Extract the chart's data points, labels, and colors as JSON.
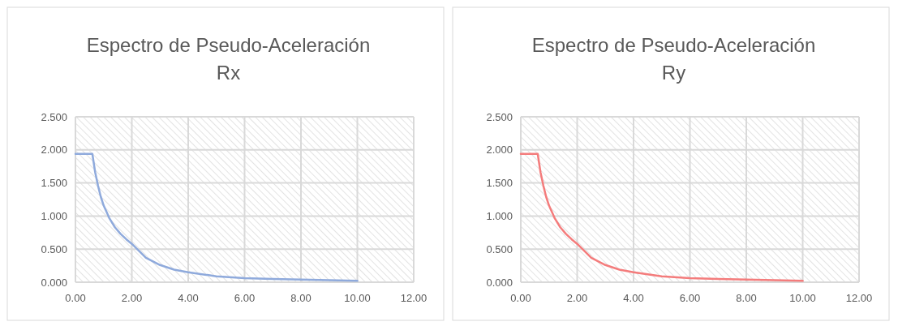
{
  "chart_data": [
    {
      "type": "line",
      "title": "Espectro de Pseudo-Aceleración Rx",
      "x": [
        0,
        0.6,
        0.7,
        0.8,
        0.9,
        1.0,
        1.2,
        1.4,
        1.6,
        1.8,
        2.0,
        2.5,
        3.0,
        3.5,
        4.0,
        5.0,
        6.0,
        7.0,
        8.0,
        9.0,
        10.0
      ],
      "series": [
        {
          "color": "#8faadc",
          "values": [
            1.94,
            1.94,
            1.66,
            1.46,
            1.29,
            1.16,
            0.97,
            0.83,
            0.73,
            0.65,
            0.58,
            0.37,
            0.26,
            0.19,
            0.15,
            0.09,
            0.06,
            0.05,
            0.04,
            0.03,
            0.02
          ]
        }
      ],
      "xlim": [
        0,
        12
      ],
      "xticks": [
        {
          "value": 0,
          "label": "0.00"
        },
        {
          "value": 2,
          "label": "2.00"
        },
        {
          "value": 4,
          "label": "4.00"
        },
        {
          "value": 6,
          "label": "6.00"
        },
        {
          "value": 8,
          "label": "8.00"
        },
        {
          "value": 10,
          "label": "10.00"
        },
        {
          "value": 12,
          "label": "12.00"
        }
      ],
      "ylim": [
        0,
        2.5
      ],
      "yticks": [
        {
          "value": 0,
          "label": "0.000"
        },
        {
          "value": 0.5,
          "label": "0.500"
        },
        {
          "value": 1,
          "label": "1.000"
        },
        {
          "value": 1.5,
          "label": "1.500"
        },
        {
          "value": 2,
          "label": "2.000"
        },
        {
          "value": 2.5,
          "label": "2.500"
        }
      ],
      "grid": true
    },
    {
      "type": "line",
      "title": "Espectro de Pseudo-Aceleración Ry",
      "x": [
        0,
        0.6,
        0.7,
        0.8,
        0.9,
        1.0,
        1.2,
        1.4,
        1.6,
        1.8,
        2.0,
        2.5,
        3.0,
        3.5,
        4.0,
        5.0,
        6.0,
        7.0,
        8.0,
        9.0,
        10.0
      ],
      "series": [
        {
          "color": "#f47c7c",
          "values": [
            1.94,
            1.94,
            1.66,
            1.46,
            1.29,
            1.16,
            0.97,
            0.83,
            0.73,
            0.65,
            0.58,
            0.37,
            0.26,
            0.19,
            0.15,
            0.09,
            0.06,
            0.05,
            0.04,
            0.03,
            0.02
          ]
        }
      ],
      "xlim": [
        0,
        12
      ],
      "xticks": [
        {
          "value": 0,
          "label": "0.00"
        },
        {
          "value": 2,
          "label": "2.00"
        },
        {
          "value": 4,
          "label": "4.00"
        },
        {
          "value": 6,
          "label": "6.00"
        },
        {
          "value": 8,
          "label": "8.00"
        },
        {
          "value": 10,
          "label": "10.00"
        },
        {
          "value": 12,
          "label": "12.00"
        }
      ],
      "ylim": [
        0,
        2.5
      ],
      "yticks": [
        {
          "value": 0,
          "label": "0.000"
        },
        {
          "value": 0.5,
          "label": "0.500"
        },
        {
          "value": 1,
          "label": "1.000"
        },
        {
          "value": 1.5,
          "label": "1.500"
        },
        {
          "value": 2,
          "label": "2.000"
        },
        {
          "value": 2.5,
          "label": "2.500"
        }
      ],
      "grid": true
    }
  ]
}
